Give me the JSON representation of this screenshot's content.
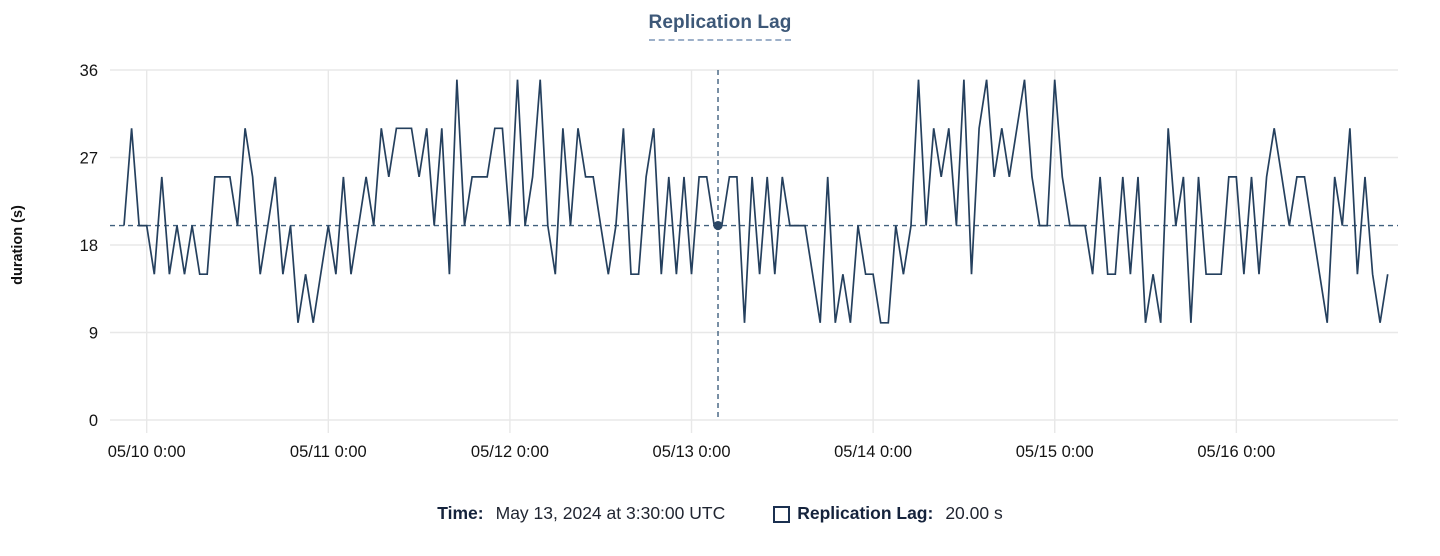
{
  "title": "Replication Lag",
  "tooltip": {
    "time_label": "Time:",
    "time_value": "May 13, 2024 at 3:30:00 UTC",
    "series_label": "Replication Lag:",
    "series_value": "20.00 s",
    "marker": "hollow-square"
  },
  "colors": {
    "line": "#25405e",
    "title": "#3d5878",
    "title_underline": "#9db0c9",
    "grid": "#e8e8e8",
    "crosshair": "#40607e",
    "crosshair_dot": "#2b4765",
    "axis_text": "#141414",
    "legend_label": "#15233c",
    "legend_value": "#1f2430",
    "background": "#ffffff"
  },
  "chart_data": {
    "type": "line",
    "title": "Replication Lag",
    "xlabel": "",
    "ylabel": "duration (s)",
    "ylim": [
      0,
      36
    ],
    "yticks": [
      0,
      9,
      18,
      27,
      36
    ],
    "grid": true,
    "legend_position": "bottom",
    "x_start": "05/09 21:00",
    "x_step_hours": 1,
    "xtick_labels": [
      "05/10 0:00",
      "05/11 0:00",
      "05/12 0:00",
      "05/13 0:00",
      "05/14 0:00",
      "05/15 0:00",
      "05/16 0:00"
    ],
    "xtick_hour_offsets": [
      3,
      27,
      51,
      75,
      99,
      123,
      147
    ],
    "series": [
      {
        "name": "Replication Lag",
        "unit": "s",
        "values": [
          20,
          30,
          20,
          20,
          15,
          25,
          15,
          20,
          15,
          20,
          15,
          15,
          25,
          25,
          25,
          20,
          30,
          25,
          15,
          20,
          25,
          15,
          20,
          10,
          15,
          10,
          15,
          20,
          15,
          25,
          15,
          20,
          25,
          20,
          30,
          25,
          30,
          30,
          30,
          25,
          30,
          20,
          30,
          15,
          35,
          20,
          25,
          25,
          25,
          30,
          30,
          20,
          35,
          20,
          25,
          35,
          20,
          15,
          30,
          20,
          30,
          25,
          25,
          20,
          15,
          20,
          30,
          15,
          15,
          25,
          30,
          15,
          25,
          15,
          25,
          15,
          25,
          25,
          20,
          20,
          25,
          25,
          10,
          25,
          15,
          25,
          15,
          25,
          20,
          20,
          20,
          15,
          10,
          25,
          10,
          15,
          10,
          20,
          15,
          15,
          10,
          10,
          20,
          15,
          20,
          35,
          20,
          30,
          25,
          30,
          20,
          35,
          15,
          30,
          35,
          25,
          30,
          25,
          30,
          35,
          25,
          20,
          20,
          35,
          25,
          20,
          20,
          20,
          15,
          25,
          15,
          15,
          25,
          15,
          25,
          10,
          15,
          10,
          30,
          20,
          25,
          10,
          25,
          15,
          15,
          15,
          25,
          25,
          15,
          25,
          15,
          25,
          30,
          25,
          20,
          25,
          25,
          20,
          15,
          10,
          25,
          20,
          30,
          15,
          25,
          15,
          10,
          15
        ]
      }
    ],
    "crosshair": {
      "hour_offset": 78.5,
      "time_label": "May 13, 2024 at 3:30:00 UTC",
      "value": 20,
      "value_label": "20.00 s"
    }
  }
}
